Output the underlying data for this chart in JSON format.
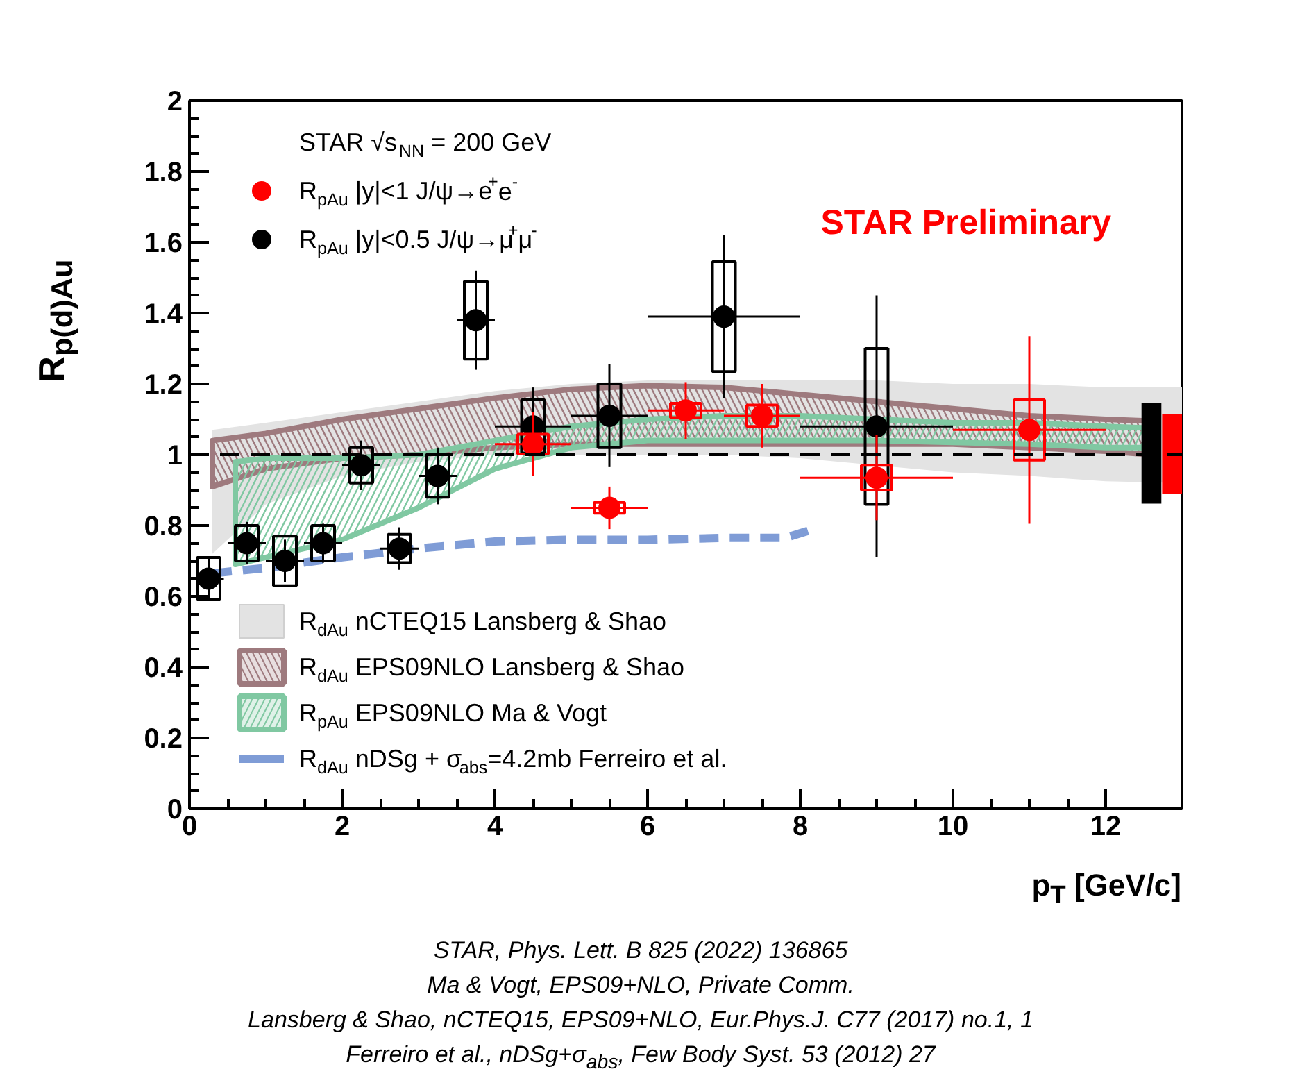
{
  "chart_data": {
    "type": "scatter",
    "xlabel": "p$_{T}$ [GeV/c]",
    "ylabel": "R$_{p(d)Au}$",
    "legend_title": "STAR √s$_{NN}$ = 200 GeV",
    "xlim": [
      0,
      13
    ],
    "xticks": [
      0,
      2,
      4,
      6,
      8,
      10,
      12
    ],
    "ylim": [
      0,
      2
    ],
    "yticks": [
      0,
      0.2,
      0.4,
      0.6,
      0.8,
      1,
      1.2,
      1.4,
      1.6,
      1.8,
      2
    ],
    "grid": false,
    "legend": "left",
    "ref_lines": [
      {
        "axis": "y",
        "value": 1,
        "color": "#000000",
        "line_style": "dashed"
      }
    ],
    "series": [
      {
        "name": "R$_{dAu}$ nCTEQ15 Lansberg & Shao",
        "type": "area",
        "color": "#e3e3e3",
        "x": [
          0.3,
          1,
          2,
          3,
          4,
          5,
          6,
          7,
          8,
          9,
          10,
          11,
          12,
          13
        ],
        "values": [
          null,
          null,
          null,
          null,
          null,
          null,
          null,
          null,
          null,
          null,
          null,
          null,
          null,
          null
        ],
        "lower": [
          0.72,
          0.86,
          0.94,
          0.98,
          1.0,
          1.0,
          1.0,
          1.0,
          0.99,
          0.97,
          0.95,
          0.94,
          0.925,
          0.92
        ],
        "upper": [
          1.07,
          1.09,
          1.12,
          1.15,
          1.18,
          1.2,
          1.21,
          1.21,
          1.21,
          1.21,
          1.2,
          1.2,
          1.19,
          1.19
        ]
      },
      {
        "name": "R$_{dAu}$ EPS09NLO Lansberg & Shao",
        "type": "area",
        "color": "#9e7a7e",
        "x": [
          0.3,
          1,
          2,
          3,
          4,
          5,
          6,
          7,
          8,
          9,
          10,
          11,
          12,
          12.6
        ],
        "values": [
          null,
          null,
          null,
          null,
          null,
          null,
          null,
          null,
          null,
          null,
          null,
          null,
          null,
          null
        ],
        "lower": [
          0.91,
          0.96,
          0.99,
          1.0,
          1.02,
          1.03,
          1.03,
          1.03,
          1.03,
          1.03,
          1.03,
          1.02,
          1.01,
          1.0
        ],
        "upper": [
          1.04,
          1.06,
          1.1,
          1.13,
          1.16,
          1.185,
          1.195,
          1.19,
          1.17,
          1.15,
          1.13,
          1.11,
          1.1,
          1.095
        ]
      },
      {
        "name": "R$_{pAu}$ EPS09NLO Ma & Vogt",
        "type": "area",
        "color": "#80c8a2",
        "x": [
          0.6,
          1,
          2,
          3,
          4,
          5,
          6,
          7,
          8,
          9,
          10,
          11,
          12,
          12.6
        ],
        "values": [
          null,
          null,
          null,
          null,
          null,
          null,
          null,
          null,
          null,
          null,
          null,
          null,
          null,
          null
        ],
        "lower": [
          0.69,
          0.71,
          0.76,
          0.85,
          0.96,
          1.02,
          1.04,
          1.04,
          1.04,
          1.04,
          1.035,
          1.03,
          1.02,
          1.02
        ],
        "upper": [
          0.98,
          0.99,
          0.99,
          1.0,
          1.04,
          1.08,
          1.1,
          1.11,
          1.11,
          1.1,
          1.09,
          1.09,
          1.08,
          1.075
        ]
      },
      {
        "name": "R$_{dAu}$ nDSg + σ$_{abs}$=4.2mb Ferreiro et al.",
        "type": "line",
        "color": "#7f9cd6",
        "line_style": "dashed",
        "x": [
          0.3,
          1,
          2,
          3,
          4,
          5,
          6,
          7,
          7.8,
          8.1
        ],
        "values": [
          0.665,
          0.68,
          0.71,
          0.735,
          0.755,
          0.76,
          0.76,
          0.765,
          0.765,
          0.785
        ]
      },
      {
        "type": "bar",
        "color": "#000000",
        "x": [
          0.25,
          0.75,
          1.25,
          1.75,
          2.25,
          2.75,
          3.25,
          3.75,
          4.5,
          5.5,
          7,
          9
        ],
        "base": [
          0.59,
          0.7,
          0.63,
          0.7,
          0.92,
          0.695,
          0.88,
          1.27,
          1.005,
          1.02,
          1.235,
          0.86
        ],
        "values": [
          0.12,
          0.1,
          0.14,
          0.1,
          0.1,
          0.08,
          0.12,
          0.22,
          0.15,
          0.18,
          0.31,
          0.44
        ]
      },
      {
        "name": "R$_{pAu}$ |y|<0.5 J/ψ→μ$^{+}$μ$^{-}$",
        "marker": "circle",
        "color": "#000000",
        "x": [
          0.25,
          0.75,
          1.25,
          1.75,
          2.25,
          2.75,
          3.25,
          3.75,
          4.5,
          5.5,
          7,
          9
        ],
        "values": [
          0.65,
          0.75,
          0.7,
          0.75,
          0.97,
          0.735,
          0.94,
          1.38,
          1.08,
          1.11,
          1.39,
          1.08
        ],
        "errors": [
          0.06,
          0.06,
          0.06,
          0.055,
          0.07,
          0.06,
          0.08,
          0.14,
          0.11,
          0.145,
          0.23,
          0.37
        ],
        "xerrors": [
          0.2,
          0.25,
          0.25,
          0.25,
          0.25,
          0.25,
          0.25,
          0.25,
          0.5,
          0.5,
          1,
          1
        ]
      },
      {
        "type": "bar",
        "color": "#ff0000",
        "x": [
          4.5,
          5.5,
          6.5,
          7.5,
          9,
          11
        ],
        "base": [
          1.002,
          0.835,
          1.105,
          1.08,
          0.9,
          0.985
        ],
        "values": [
          0.056,
          0.03,
          0.04,
          0.06,
          0.07,
          0.17
        ]
      },
      {
        "name": "R$_{pAu}$ |y|<1 J/ψ→e$^{+}$e$^{-}$",
        "marker": "circle",
        "color": "#ff0000",
        "x": [
          4.5,
          5.5,
          6.5,
          7.5,
          9,
          11
        ],
        "values": [
          1.03,
          0.85,
          1.125,
          1.11,
          0.935,
          1.07
        ],
        "errors": [
          0.09,
          0.06,
          0.08,
          0.09,
          0.12,
          0.265
        ],
        "xerrors": [
          0.5,
          0.5,
          0.5,
          0.5,
          1,
          1
        ]
      },
      {
        "type": "bar",
        "color": "#000000",
        "x": [
          12.6
        ],
        "base": [
          0.862
        ],
        "values": [
          0.284
        ]
      },
      {
        "type": "bar",
        "color": "#ff0000",
        "x": [
          12.87
        ],
        "base": [
          0.89
        ],
        "values": [
          0.225
        ]
      }
    ],
    "annotations": [
      "STAR Preliminary",
      "STAR, Phys. Lett. B 825 (2022) 136865",
      "Ma & Vogt, EPS09+NLO, Private Comm.",
      "Lansberg & Shao, nCTEQ15, EPS09+NLO, Eur.Phys.J. C77 (2017) no.1, 1",
      "Ferreiro et al., nDSg+σ$_{abs}$, Few Body Syst. 53 (2012) 27"
    ]
  }
}
